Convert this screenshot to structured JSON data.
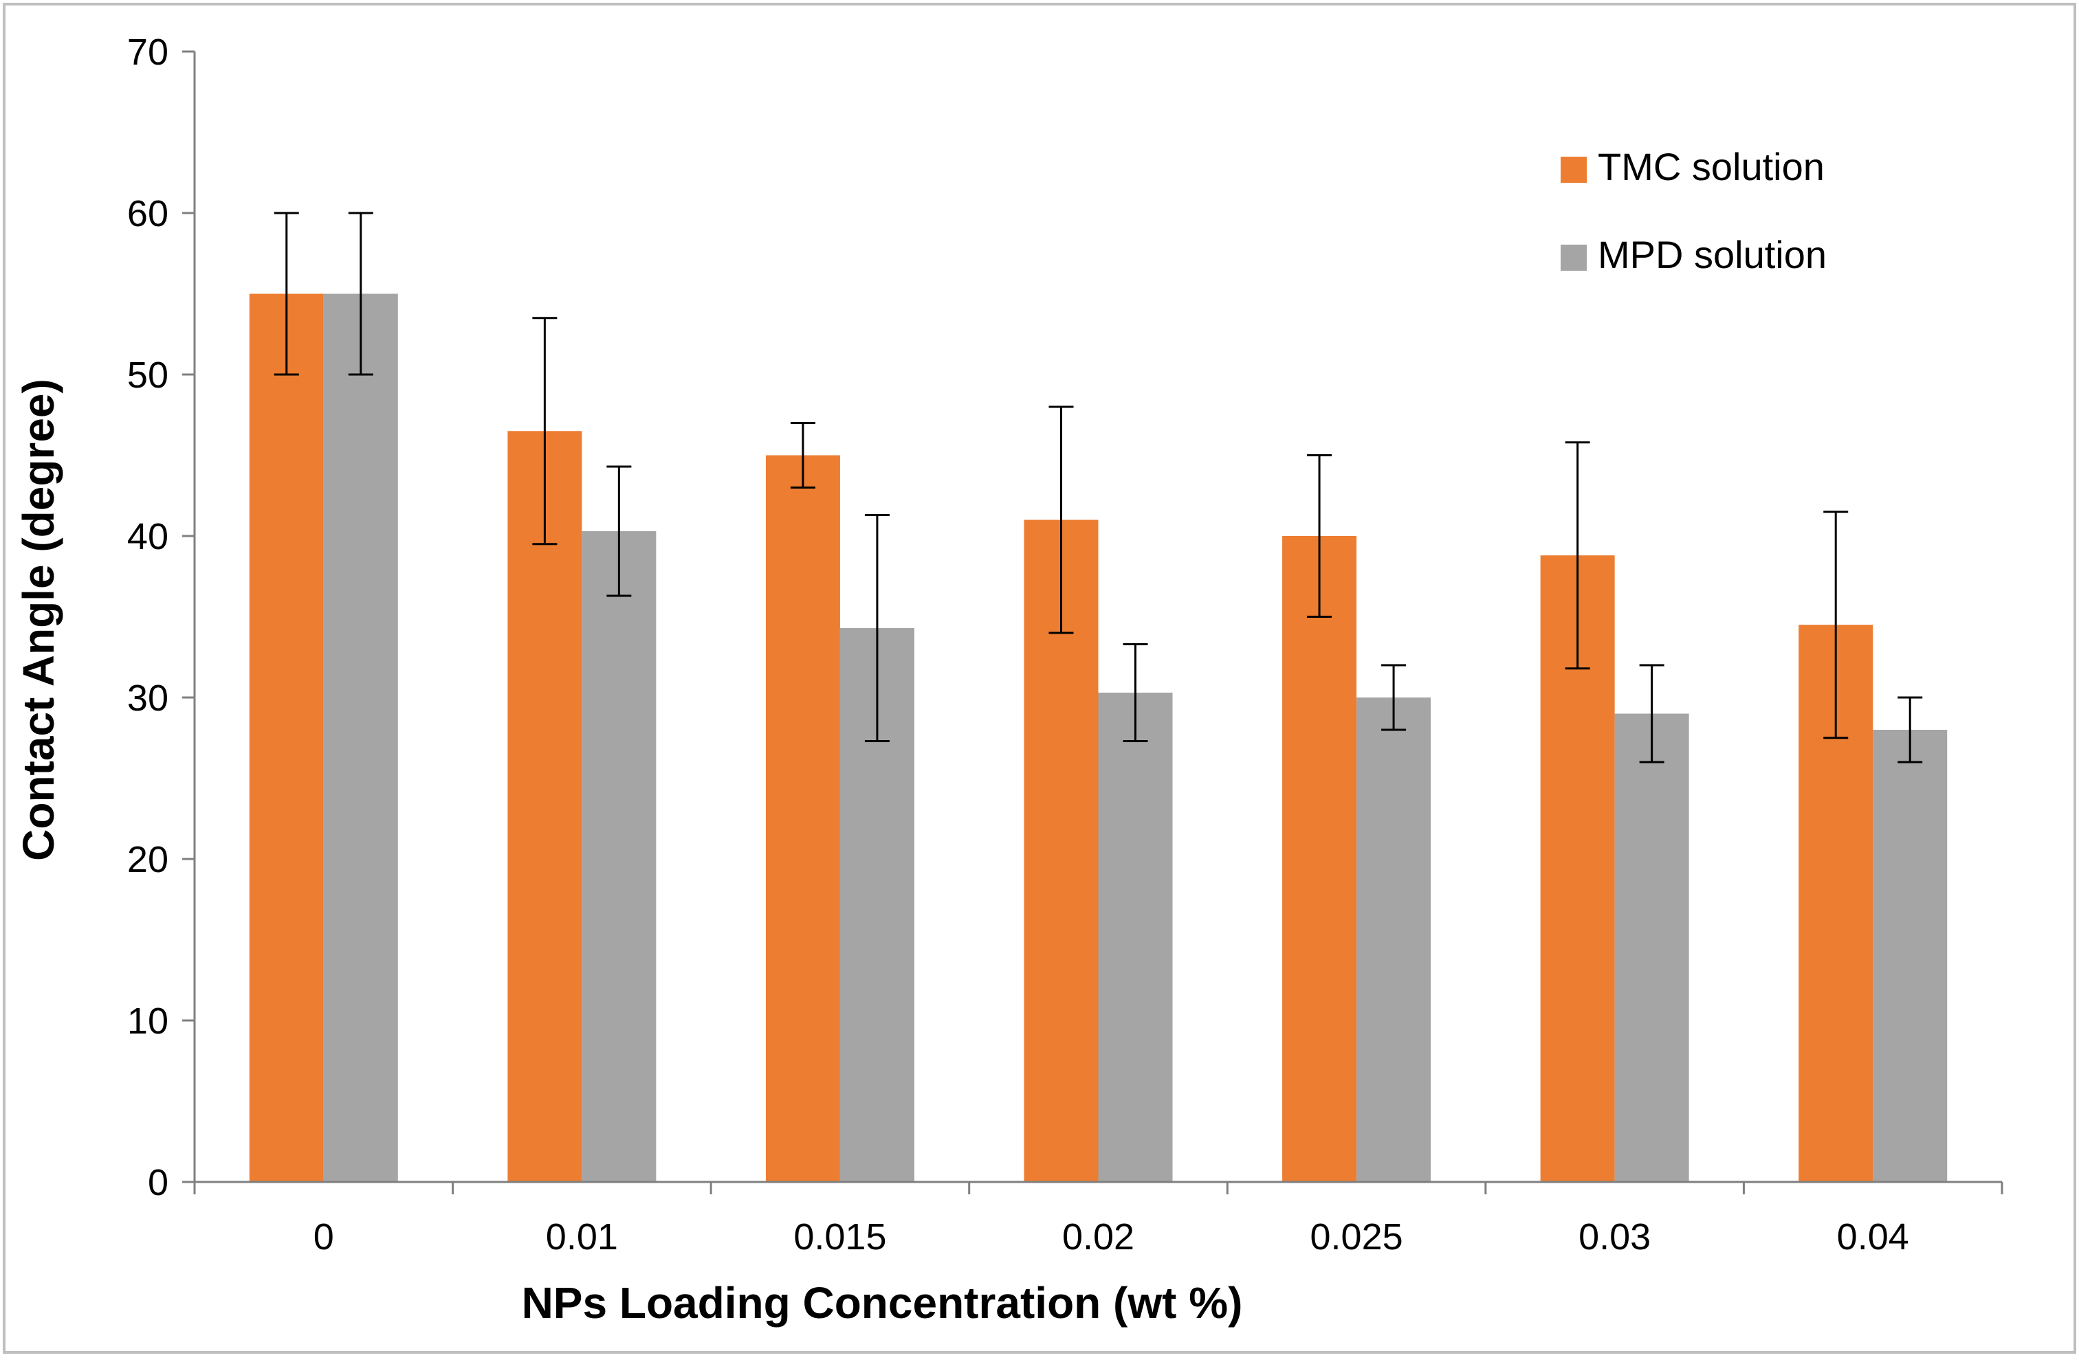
{
  "chart_data": {
    "type": "bar",
    "title": "",
    "xlabel": "NPs Loading Concentration (wt %)",
    "ylabel": "Contact Angle (degree)",
    "ylim": [
      0,
      70
    ],
    "yticks": [
      0,
      10,
      20,
      30,
      40,
      50,
      60,
      70
    ],
    "grid": false,
    "legend_position": "top-right",
    "categories": [
      "0",
      "0.01",
      "0.015",
      "0.02",
      "0.025",
      "0.03",
      "0.04"
    ],
    "series": [
      {
        "name": "TMC solution",
        "color": "#ED7D31",
        "values": [
          55,
          46.5,
          45,
          41,
          40,
          38.8,
          34.5
        ],
        "errors": [
          5,
          7,
          2,
          7,
          5,
          7,
          7
        ]
      },
      {
        "name": "MPD solution",
        "color": "#A5A5A5",
        "values": [
          55,
          40.3,
          34.3,
          30.3,
          30,
          29,
          28
        ],
        "errors": [
          5,
          4,
          7,
          3,
          2,
          3,
          2
        ]
      }
    ]
  },
  "colors": {
    "axis": "#7f7f7f",
    "text": "#000000",
    "error_bar": "#000000",
    "frame": "#bfbfbf"
  }
}
